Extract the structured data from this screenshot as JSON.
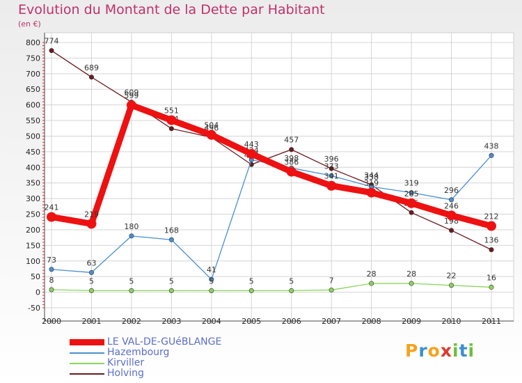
{
  "header": {
    "title": "Evolution du Montant de la Dette par Habitant",
    "subtitle": "(en €)"
  },
  "logo": {
    "text": "Proxiti",
    "letters": [
      {
        "ch": "P",
        "color": "#f7a21b"
      },
      {
        "ch": "r",
        "color": "#3b8fd0"
      },
      {
        "ch": "o",
        "color": "#f7a21b"
      },
      {
        "ch": "x",
        "color": "#e0372b"
      },
      {
        "ch": "i",
        "color": "#6cbf3a"
      },
      {
        "ch": "t",
        "color": "#3b8fd0"
      },
      {
        "ch": "i",
        "color": "#6cbf3a"
      }
    ]
  },
  "chart_data": {
    "type": "line",
    "title": "Evolution du Montant de la Dette par Habitant",
    "subtitle": "(en €)",
    "xlabel": "",
    "ylabel": "",
    "x": [
      "2000",
      "2001",
      "2002",
      "2003",
      "2004",
      "2005",
      "2006",
      "2007",
      "2008",
      "2009",
      "2010",
      "2011"
    ],
    "ylim": [
      -50,
      800
    ],
    "yticks": [
      -50,
      0,
      50,
      100,
      150,
      200,
      250,
      300,
      350,
      400,
      450,
      500,
      550,
      600,
      650,
      700,
      750,
      800
    ],
    "grid": true,
    "legend_position": "bottom-left",
    "series": [
      {
        "name": "Holving",
        "color": "#6b1a1f",
        "values": [
          774,
          689,
          609,
          524,
          496,
          409,
          457,
          396,
          344,
          255,
          198,
          136
        ]
      },
      {
        "name": "Hazembourg",
        "color": "#4a8fcf",
        "values": [
          73,
          63,
          180,
          168,
          41,
          424,
          398,
          373,
          338,
          319,
          296,
          438
        ]
      },
      {
        "name": "Kirviller",
        "color": "#8ad45a",
        "values": [
          8,
          5,
          5,
          5,
          5,
          5,
          5,
          7,
          28,
          28,
          22,
          16
        ]
      },
      {
        "name": "LE VAL-DE-GUéBLANGE",
        "color": "#ee1111",
        "values": [
          241,
          219,
          599,
          551,
          504,
          443,
          386,
          341,
          319,
          285,
          246,
          212
        ]
      }
    ],
    "legend": [
      {
        "name": "LE VAL-DE-GUéBLANGE",
        "color": "#ee1111"
      },
      {
        "name": "Hazembourg",
        "color": "#4a8fcf"
      },
      {
        "name": "Kirviller",
        "color": "#8ad45a"
      },
      {
        "name": "Holving",
        "color": "#6b1a1f"
      }
    ]
  }
}
